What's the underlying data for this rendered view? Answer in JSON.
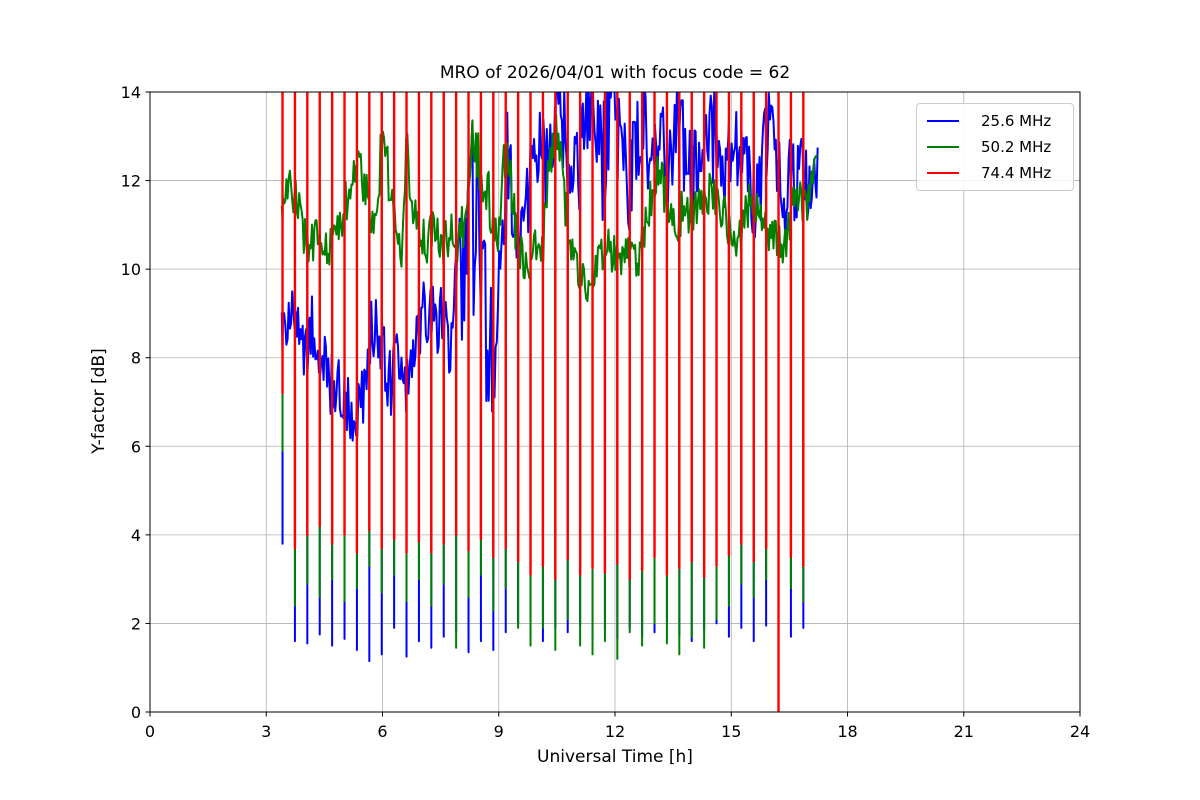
{
  "chart_data": {
    "type": "line",
    "title": "MRO of 2026/04/01 with focus code = 62",
    "xlabel": "Universal Time [h]",
    "ylabel": "Y-factor [dB]",
    "xlim": [
      0,
      24
    ],
    "ylim": [
      0,
      14
    ],
    "xticks": [
      0,
      3,
      6,
      9,
      12,
      15,
      18,
      21,
      24
    ],
    "yticks": [
      0,
      2,
      4,
      6,
      8,
      10,
      12,
      14
    ],
    "grid": true,
    "legend_position": "upper right",
    "colors": {
      "background": "#ffffff",
      "grid": "#b0b0b0",
      "axes": "#000000",
      "legend_border": "#cccccc"
    },
    "note": "Series envelopes are [time_h, mean_dB, halfwidth_dB]; spikes are periodic calibration dips [time_h, min_25.6MHz, min_50.2MHz, min_74.4MHz]. 74.4 MHz baseline lies above the 14 dB axis limit (clipped).",
    "series": [
      {
        "name": "25.6 MHz",
        "color": "#0000ff",
        "stroke_width": 2,
        "envelope": [
          [
            3.4,
            8.6,
            0.8
          ],
          [
            3.6,
            9.0,
            0.8
          ],
          [
            3.8,
            8.4,
            0.8
          ],
          [
            4.0,
            8.3,
            0.9
          ],
          [
            4.2,
            8.8,
            0.8
          ],
          [
            4.4,
            8.0,
            0.9
          ],
          [
            4.6,
            7.5,
            0.9
          ],
          [
            4.8,
            7.3,
            0.9
          ],
          [
            5.0,
            7.2,
            1.0
          ],
          [
            5.2,
            6.8,
            1.0
          ],
          [
            5.4,
            6.6,
            1.1
          ],
          [
            5.6,
            7.4,
            1.1
          ],
          [
            5.75,
            8.7,
            0.9
          ],
          [
            5.9,
            8.8,
            0.8
          ],
          [
            6.05,
            7.7,
            1.0
          ],
          [
            6.2,
            7.4,
            0.9
          ],
          [
            6.4,
            7.9,
            0.8
          ],
          [
            6.55,
            7.2,
            0.8
          ],
          [
            6.7,
            7.7,
            0.9
          ],
          [
            6.9,
            8.7,
            0.9
          ],
          [
            7.1,
            9.2,
            0.8
          ],
          [
            7.3,
            8.9,
            0.8
          ],
          [
            7.5,
            8.9,
            0.9
          ],
          [
            7.7,
            8.4,
            0.9
          ],
          [
            7.9,
            9.3,
            1.3
          ],
          [
            8.1,
            10.5,
            2.0
          ],
          [
            8.3,
            11.5,
            2.4
          ],
          [
            8.5,
            10.3,
            2.4
          ],
          [
            8.7,
            8.8,
            2.2
          ],
          [
            8.9,
            7.3,
            1.5
          ],
          [
            9.05,
            9.0,
            2.2
          ],
          [
            9.2,
            12.3,
            1.7
          ],
          [
            9.4,
            11.8,
            1.4
          ],
          [
            9.55,
            10.7,
            1.0
          ],
          [
            9.7,
            11.2,
            1.1
          ],
          [
            9.85,
            12.2,
            1.2
          ],
          [
            10.05,
            13.2,
            1.2
          ],
          [
            10.25,
            12.4,
            1.2
          ],
          [
            10.45,
            13.6,
            1.1
          ],
          [
            10.65,
            13.2,
            1.2
          ],
          [
            10.9,
            11.9,
            1.5
          ],
          [
            11.15,
            12.6,
            1.2
          ],
          [
            11.35,
            13.7,
            1.1
          ],
          [
            11.65,
            12.3,
            1.5
          ],
          [
            11.95,
            13.4,
            1.2
          ],
          [
            12.15,
            12.9,
            1.2
          ],
          [
            12.45,
            11.9,
            1.4
          ],
          [
            12.75,
            13.5,
            1.1
          ],
          [
            12.95,
            12.4,
            1.2
          ],
          [
            13.15,
            13.1,
            1.2
          ],
          [
            13.35,
            12.2,
            1.1
          ],
          [
            13.55,
            13.4,
            1.1
          ],
          [
            13.75,
            12.9,
            1.2
          ],
          [
            13.95,
            12.0,
            1.1
          ],
          [
            14.15,
            12.6,
            1.2
          ],
          [
            14.35,
            13.5,
            1.1
          ],
          [
            14.55,
            12.9,
            1.2
          ],
          [
            14.75,
            11.8,
            1.1
          ],
          [
            14.95,
            12.3,
            1.2
          ],
          [
            15.15,
            13.0,
            1.1
          ],
          [
            15.35,
            12.2,
            1.1
          ],
          [
            15.55,
            11.5,
            1.0
          ],
          [
            15.75,
            12.1,
            1.1
          ],
          [
            15.95,
            13.1,
            1.1
          ],
          [
            16.15,
            12.5,
            1.1
          ],
          [
            16.35,
            11.6,
            1.0
          ],
          [
            16.55,
            11.9,
            1.1
          ],
          [
            16.75,
            12.4,
            1.1
          ],
          [
            16.95,
            12.1,
            1.0
          ],
          [
            17.1,
            12.0,
            0.9
          ],
          [
            17.25,
            12.4,
            0.8
          ]
        ]
      },
      {
        "name": "50.2 MHz",
        "color": "#008000",
        "stroke_width": 2,
        "envelope": [
          [
            3.4,
            11.5,
            0.5
          ],
          [
            3.55,
            11.8,
            0.5
          ],
          [
            3.75,
            11.6,
            0.5
          ],
          [
            3.95,
            10.9,
            0.5
          ],
          [
            4.15,
            10.5,
            0.5
          ],
          [
            4.35,
            10.9,
            0.5
          ],
          [
            4.55,
            10.5,
            0.4
          ],
          [
            4.75,
            10.6,
            0.5
          ],
          [
            4.95,
            11.2,
            0.5
          ],
          [
            5.15,
            11.8,
            0.5
          ],
          [
            5.35,
            12.3,
            0.5
          ],
          [
            5.55,
            11.9,
            0.5
          ],
          [
            5.75,
            10.9,
            0.5
          ],
          [
            5.9,
            11.8,
            0.6
          ],
          [
            6.0,
            13.3,
            0.5
          ],
          [
            6.1,
            12.4,
            0.6
          ],
          [
            6.3,
            11.1,
            0.5
          ],
          [
            6.5,
            10.5,
            0.5
          ],
          [
            6.62,
            12.8,
            0.5
          ],
          [
            6.75,
            11.6,
            0.5
          ],
          [
            6.95,
            10.9,
            0.5
          ],
          [
            7.15,
            10.5,
            0.5
          ],
          [
            7.35,
            11.0,
            0.5
          ],
          [
            7.55,
            10.4,
            0.5
          ],
          [
            7.75,
            10.9,
            0.5
          ],
          [
            7.95,
            10.6,
            0.5
          ],
          [
            8.15,
            11.3,
            0.6
          ],
          [
            8.35,
            13.0,
            0.7
          ],
          [
            8.55,
            12.3,
            0.7
          ],
          [
            8.75,
            11.6,
            0.6
          ],
          [
            8.95,
            10.6,
            0.5
          ],
          [
            9.15,
            12.6,
            0.7
          ],
          [
            9.3,
            12.0,
            0.6
          ],
          [
            9.45,
            10.8,
            0.5
          ],
          [
            9.6,
            10.3,
            0.5
          ],
          [
            9.75,
            10.2,
            0.5
          ],
          [
            9.95,
            10.4,
            0.5
          ],
          [
            10.15,
            10.7,
            0.6
          ],
          [
            10.35,
            12.5,
            0.7
          ],
          [
            10.55,
            13.2,
            0.7
          ],
          [
            10.75,
            11.2,
            0.6
          ],
          [
            10.95,
            10.3,
            0.5
          ],
          [
            11.15,
            9.9,
            0.5
          ],
          [
            11.35,
            9.7,
            0.5
          ],
          [
            11.55,
            10.1,
            0.5
          ],
          [
            11.75,
            10.5,
            0.5
          ],
          [
            11.95,
            10.4,
            0.5
          ],
          [
            12.15,
            10.3,
            0.5
          ],
          [
            12.35,
            10.5,
            0.5
          ],
          [
            12.55,
            10.2,
            0.5
          ],
          [
            12.75,
            10.7,
            0.5
          ],
          [
            12.95,
            11.7,
            0.6
          ],
          [
            13.15,
            12.3,
            0.6
          ],
          [
            13.35,
            11.5,
            0.5
          ],
          [
            13.55,
            11.0,
            0.5
          ],
          [
            13.75,
            11.3,
            0.5
          ],
          [
            13.95,
            11.2,
            0.5
          ],
          [
            14.15,
            11.5,
            0.5
          ],
          [
            14.35,
            11.7,
            0.5
          ],
          [
            14.55,
            11.6,
            0.5
          ],
          [
            14.75,
            11.4,
            0.5
          ],
          [
            14.95,
            10.8,
            0.5
          ],
          [
            15.15,
            10.5,
            0.5
          ],
          [
            15.35,
            11.2,
            0.5
          ],
          [
            15.55,
            11.6,
            0.5
          ],
          [
            15.75,
            11.3,
            0.5
          ],
          [
            15.95,
            10.7,
            0.5
          ],
          [
            16.15,
            10.8,
            0.5
          ],
          [
            16.35,
            10.4,
            0.5
          ],
          [
            16.55,
            11.3,
            0.5
          ],
          [
            16.75,
            11.6,
            0.5
          ],
          [
            16.95,
            11.5,
            0.5
          ],
          [
            17.1,
            11.9,
            0.5
          ],
          [
            17.25,
            12.3,
            0.4
          ]
        ]
      },
      {
        "name": "74.4 MHz",
        "color": "#ff0000",
        "stroke_width": 2.4,
        "envelope": [
          [
            3.4,
            14.7,
            0.05
          ],
          [
            17.0,
            14.7,
            0.05
          ]
        ]
      }
    ],
    "spikes": [
      [
        3.42,
        3.8,
        5.9,
        7.2
      ],
      [
        3.74,
        1.6,
        2.4,
        3.7
      ],
      [
        4.06,
        1.55,
        2.9,
        4.0
      ],
      [
        4.38,
        1.75,
        2.6,
        4.2
      ],
      [
        4.7,
        1.5,
        3.0,
        3.8
      ],
      [
        5.02,
        1.65,
        2.5,
        4.0
      ],
      [
        5.34,
        1.4,
        2.8,
        3.6
      ],
      [
        5.66,
        1.15,
        3.3,
        4.1
      ],
      [
        5.98,
        1.3,
        2.7,
        3.7
      ],
      [
        6.3,
        1.9,
        3.1,
        3.9
      ],
      [
        6.62,
        1.25,
        2.5,
        3.6
      ],
      [
        6.94,
        1.6,
        3.0,
        3.85
      ],
      [
        7.26,
        1.45,
        2.4,
        3.6
      ],
      [
        7.58,
        1.7,
        2.9,
        3.8
      ],
      [
        7.9,
        1.8,
        1.45,
        4.0
      ],
      [
        8.22,
        1.35,
        2.6,
        3.65
      ],
      [
        8.54,
        1.6,
        3.1,
        3.9
      ],
      [
        8.86,
        1.4,
        2.3,
        3.5
      ],
      [
        9.18,
        1.8,
        2.8,
        3.7
      ],
      [
        9.5,
        2.0,
        1.9,
        3.4
      ],
      [
        9.82,
        1.7,
        1.5,
        3.1
      ],
      [
        10.14,
        1.6,
        1.9,
        3.3
      ],
      [
        10.46,
        1.9,
        1.4,
        3.0
      ],
      [
        10.78,
        1.8,
        2.1,
        3.45
      ],
      [
        11.1,
        1.95,
        1.5,
        3.1
      ],
      [
        11.42,
        1.75,
        1.3,
        3.25
      ],
      [
        11.74,
        1.85,
        1.6,
        3.15
      ],
      [
        12.06,
        1.65,
        1.2,
        3.35
      ],
      [
        12.38,
        1.9,
        1.8,
        3.0
      ],
      [
        12.7,
        1.7,
        1.5,
        3.2
      ],
      [
        13.02,
        1.8,
        2.0,
        3.5
      ],
      [
        13.34,
        2.0,
        1.55,
        3.1
      ],
      [
        13.66,
        1.75,
        1.3,
        3.25
      ],
      [
        13.98,
        1.6,
        1.7,
        3.4
      ],
      [
        14.3,
        1.85,
        1.45,
        3.05
      ],
      [
        14.62,
        2.0,
        2.1,
        3.3
      ],
      [
        14.94,
        1.7,
        2.4,
        3.55
      ],
      [
        15.26,
        1.9,
        2.9,
        3.8
      ],
      [
        15.58,
        1.6,
        2.6,
        3.4
      ],
      [
        15.9,
        1.95,
        3.0,
        3.7
      ],
      [
        16.22,
        1.8,
        2.3,
        0.0
      ],
      [
        16.54,
        1.7,
        2.8,
        3.5
      ],
      [
        16.86,
        1.9,
        2.5,
        3.3
      ]
    ]
  }
}
